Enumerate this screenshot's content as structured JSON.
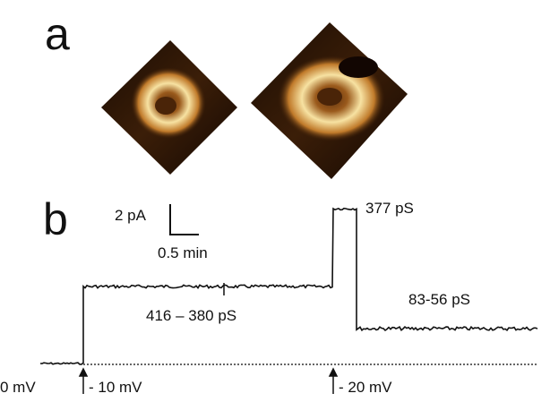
{
  "panels": [
    {
      "label": "a"
    },
    {
      "label": "b"
    }
  ],
  "scale_bar": {
    "current": "2 pA",
    "time": "0.5 min"
  },
  "annotations": {
    "first_step": "416 – 380 pS",
    "peak": "377 pS",
    "second_step": "83-56 pS"
  },
  "voltages": {
    "start": "0 mV",
    "first": "- 10 mV",
    "second": "- 20 mV"
  }
}
